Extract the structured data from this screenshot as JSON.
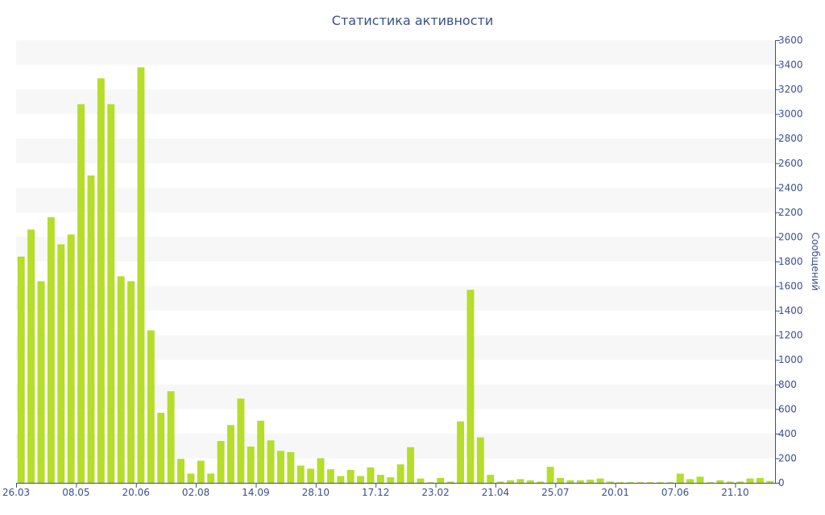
{
  "chart_data": {
    "type": "bar",
    "title": "Статистика активности",
    "ylabel": "Сообщений",
    "xlabel": "",
    "ylim": [
      0,
      3600
    ],
    "yticks": [
      0,
      200,
      400,
      600,
      800,
      1000,
      1200,
      1400,
      1600,
      1800,
      2000,
      2200,
      2400,
      2600,
      2800,
      3000,
      3200,
      3400,
      3600
    ],
    "y_axis_side": "right",
    "grid": "alternating horizontal bands",
    "bar_color": "#b5dd2a",
    "x_tick_labels": [
      {
        "index": 0,
        "label": "26.03"
      },
      {
        "index": 6,
        "label": "08.05"
      },
      {
        "index": 12,
        "label": "20.06"
      },
      {
        "index": 18,
        "label": "02.08"
      },
      {
        "index": 24,
        "label": "14.09"
      },
      {
        "index": 30,
        "label": "28.10"
      },
      {
        "index": 36,
        "label": "17.12"
      },
      {
        "index": 42,
        "label": "23.02"
      },
      {
        "index": 48,
        "label": "21.04"
      },
      {
        "index": 54,
        "label": "25.07"
      },
      {
        "index": 60,
        "label": "20.01"
      },
      {
        "index": 66,
        "label": "07.06"
      },
      {
        "index": 72,
        "label": "21.10"
      }
    ],
    "values": [
      1840,
      2060,
      1640,
      2160,
      1940,
      2020,
      3080,
      2500,
      3290,
      3080,
      1680,
      1640,
      3380,
      1240,
      570,
      745,
      195,
      75,
      180,
      75,
      340,
      470,
      685,
      295,
      505,
      345,
      260,
      250,
      140,
      115,
      200,
      110,
      55,
      105,
      55,
      125,
      65,
      45,
      150,
      290,
      35,
      5,
      40,
      10,
      500,
      1570,
      370,
      65,
      10,
      20,
      30,
      20,
      10,
      130,
      40,
      20,
      20,
      25,
      35,
      10,
      5,
      5,
      5,
      5,
      5,
      5,
      75,
      30,
      50,
      5,
      20,
      10,
      10,
      35,
      40,
      15
    ]
  }
}
